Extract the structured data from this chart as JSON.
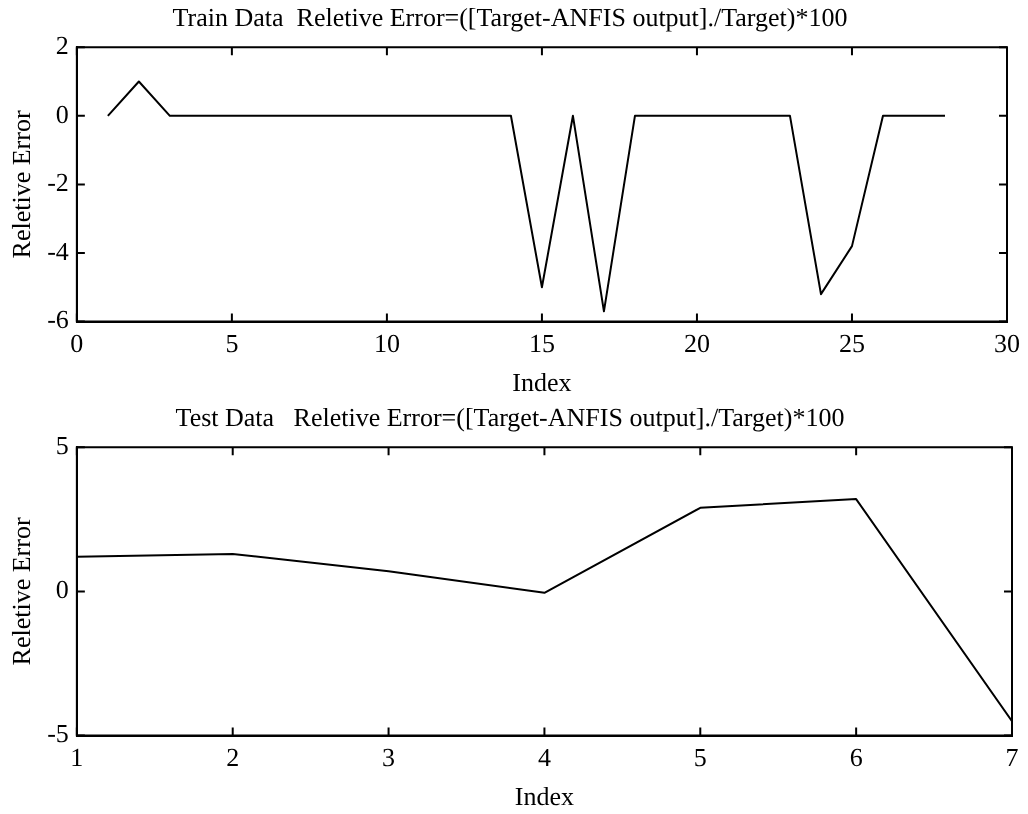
{
  "chart_data": [
    {
      "type": "line",
      "title": "Train Data  Reletive Error=([Target-ANFIS output]./Target)*100",
      "xlabel": "Index",
      "ylabel": "Reletive Error",
      "x": [
        1,
        2,
        3,
        4,
        5,
        6,
        7,
        8,
        9,
        10,
        11,
        12,
        13,
        14,
        15,
        16,
        17,
        18,
        19,
        20,
        21,
        22,
        23,
        24,
        25,
        26,
        27,
        28
      ],
      "series": [
        {
          "color": "#000000",
          "values": [
            0,
            1,
            0,
            0,
            0,
            0,
            0,
            0,
            0,
            0,
            0,
            0,
            0,
            0,
            -5,
            0,
            -5.7,
            0,
            0,
            0,
            0,
            0,
            0,
            -5.2,
            -3.8,
            0,
            0,
            0
          ]
        }
      ],
      "xlim": [
        0,
        30
      ],
      "xticks": [
        0,
        5,
        10,
        15,
        20,
        25,
        30
      ],
      "ylim": [
        -6,
        2
      ],
      "yticks": [
        -6,
        -4,
        -2,
        0,
        2
      ],
      "grid": false,
      "legend": false,
      "marker": "none",
      "line_style": "solid"
    },
    {
      "type": "line",
      "title": "Test Data   Reletive Error=([Target-ANFIS output]./Target)*100",
      "xlabel": "Index",
      "ylabel": "Reletive Error",
      "x": [
        1,
        2,
        3,
        4,
        5,
        6,
        7
      ],
      "series": [
        {
          "color": "#000000",
          "values": [
            1.2,
            1.3,
            0.7,
            -0.05,
            2.9,
            3.2,
            -4.5
          ]
        }
      ],
      "xlim": [
        1,
        7
      ],
      "xticks": [
        1,
        2,
        3,
        4,
        5,
        6,
        7
      ],
      "ylim": [
        -5,
        5
      ],
      "yticks": [
        -5,
        0,
        5
      ],
      "grid": false,
      "legend": false,
      "marker": "none",
      "line_style": "solid"
    }
  ]
}
